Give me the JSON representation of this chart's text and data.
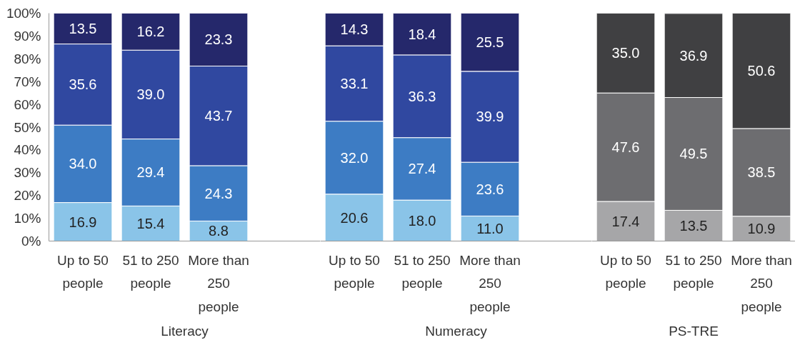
{
  "chart_data": [
    {
      "type": "bar",
      "stacked": true,
      "xlabel": "Literacy",
      "categories": [
        "Up to 50 people",
        "51 to 250 people",
        "More than 250 people",
        null
      ],
      "series": [
        {
          "color": "#8ac4e8",
          "values": [
            16.9,
            15.4,
            8.8,
            null
          ],
          "value_labels": [
            "16.9",
            "15.4",
            "8.8",
            null
          ]
        },
        {
          "color": "#3d7cc4",
          "values": [
            34.0,
            29.4,
            24.3,
            null
          ],
          "value_labels": [
            "34.0",
            "29.4",
            "24.3",
            null
          ]
        },
        {
          "color": "#3048a0",
          "values": [
            35.6,
            39.0,
            43.7,
            null
          ],
          "value_labels": [
            "35.6",
            "39.0",
            "43.7",
            null
          ]
        },
        {
          "color": "#25286b",
          "values": [
            13.5,
            16.2,
            23.3,
            null
          ],
          "value_labels": [
            "13.5",
            "16.2",
            "23.3",
            null
          ]
        }
      ],
      "ylim": [
        0,
        100
      ],
      "yticks": [
        {
          "value": 0,
          "label": "0%"
        },
        {
          "value": 10,
          "label": "10%"
        },
        {
          "value": 20,
          "label": "20%"
        },
        {
          "value": 30,
          "label": "30%"
        },
        {
          "value": 40,
          "label": "40%"
        },
        {
          "value": 50,
          "label": "50%"
        },
        {
          "value": 60,
          "label": "60%"
        },
        {
          "value": 70,
          "label": "70%"
        },
        {
          "value": 80,
          "label": "80%"
        },
        {
          "value": 90,
          "label": "90%"
        },
        {
          "value": 100,
          "label": "100%"
        }
      ],
      "grid": false
    },
    {
      "type": "bar",
      "stacked": true,
      "xlabel": "Numeracy",
      "categories": [
        "Up to 50 people",
        "51 to 250 people",
        "More than 250 people",
        null
      ],
      "series": [
        {
          "color": "#8ac4e8",
          "values": [
            20.6,
            18.0,
            11.0,
            null
          ],
          "value_labels": [
            "20.6",
            "18.0",
            "11.0",
            null
          ]
        },
        {
          "color": "#3d7cc4",
          "values": [
            32.0,
            27.4,
            23.6,
            null
          ],
          "value_labels": [
            "32.0",
            "27.4",
            "23.6",
            null
          ]
        },
        {
          "color": "#3048a0",
          "values": [
            33.1,
            36.3,
            39.9,
            null
          ],
          "value_labels": [
            "33.1",
            "36.3",
            "39.9",
            null
          ]
        },
        {
          "color": "#25286b",
          "values": [
            14.3,
            18.4,
            25.5,
            null
          ],
          "value_labels": [
            "14.3",
            "18.4",
            "25.5",
            null
          ]
        }
      ],
      "ylim": [
        0,
        100
      ],
      "tick_labels": "x",
      "grid": false
    },
    {
      "type": "bar",
      "stacked": true,
      "xlabel": "PS-TRE",
      "categories": [
        "Up to 50 people",
        "51 to 250 people",
        "More than 250 people"
      ],
      "series": [
        {
          "color": "#a6a6a8",
          "values": [
            17.4,
            13.5,
            10.9
          ],
          "value_labels": [
            "17.4",
            "13.5",
            "10.9"
          ]
        },
        {
          "color": "#6d6d70",
          "values": [
            47.6,
            49.5,
            38.5
          ],
          "value_labels": [
            "47.6",
            "49.5",
            "38.5"
          ]
        },
        {
          "color": "#404042",
          "values": [
            35.0,
            36.9,
            50.6
          ],
          "value_labels": [
            "35.0",
            "36.9",
            "50.6"
          ]
        }
      ],
      "ylim": [
        0,
        100
      ],
      "tick_labels": "x",
      "grid": false
    }
  ]
}
